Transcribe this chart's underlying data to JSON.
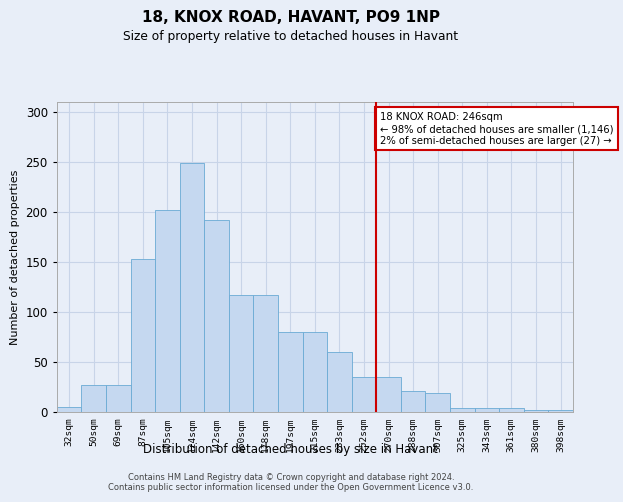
{
  "title1": "18, KNOX ROAD, HAVANT, PO9 1NP",
  "title2": "Size of property relative to detached houses in Havant",
  "xlabel": "Distribution of detached houses by size in Havant",
  "ylabel": "Number of detached properties",
  "bar_labels": [
    "32sqm",
    "50sqm",
    "69sqm",
    "87sqm",
    "105sqm",
    "124sqm",
    "142sqm",
    "160sqm",
    "178sqm",
    "197sqm",
    "215sqm",
    "233sqm",
    "252sqm",
    "270sqm",
    "288sqm",
    "307sqm",
    "325sqm",
    "343sqm",
    "361sqm",
    "380sqm",
    "398sqm"
  ],
  "bar_values": [
    5,
    27,
    27,
    153,
    202,
    249,
    192,
    117,
    117,
    80,
    80,
    60,
    35,
    35,
    21,
    19,
    4,
    4,
    4,
    2,
    2
  ],
  "bar_color": "#c5d8f0",
  "bar_edge_color": "#6aaad4",
  "vline_x": 12.5,
  "vline_color": "#cc0000",
  "annotation_text": "18 KNOX ROAD: 246sqm\n← 98% of detached houses are smaller (1,146)\n2% of semi-detached houses are larger (27) →",
  "annotation_box_color": "#ffffff",
  "annotation_box_edge": "#cc0000",
  "grid_color": "#c8d4e8",
  "background_color": "#e8eef8",
  "footer_line1": "Contains HM Land Registry data © Crown copyright and database right 2024.",
  "footer_line2": "Contains public sector information licensed under the Open Government Licence v3.0.",
  "ylim": [
    0,
    310
  ],
  "yticks": [
    0,
    50,
    100,
    150,
    200,
    250,
    300
  ]
}
